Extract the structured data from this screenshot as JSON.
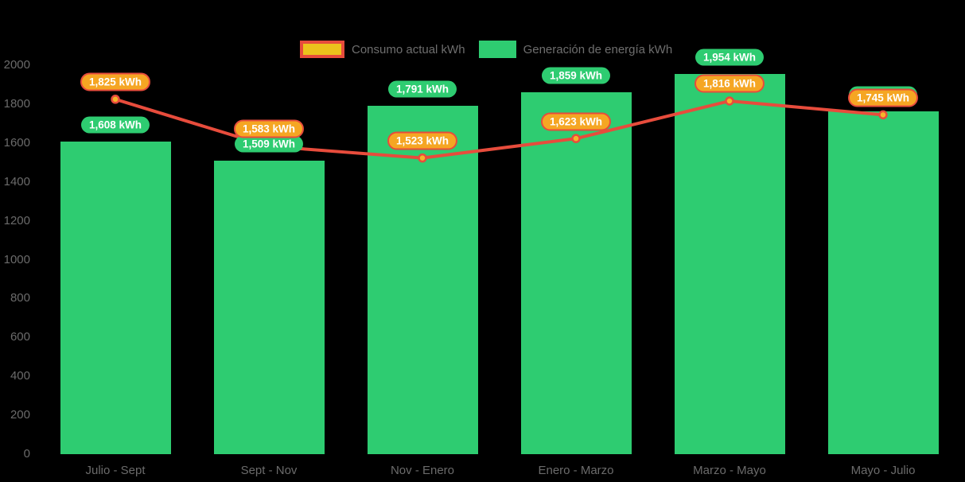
{
  "chart_data": {
    "type": "bar+line",
    "title": "",
    "xlabel": "",
    "ylabel": "",
    "categories": [
      "Julio - Sept",
      "Sept - Nov",
      "Nov - Enero",
      "Enero - Marzo",
      "Marzo - Mayo",
      "Mayo - Julio"
    ],
    "series": [
      {
        "name": "Consumo actual kWh",
        "type": "line",
        "values": [
          1825,
          1583,
          1523,
          1623,
          1816,
          1745
        ],
        "point_labels": [
          "1,825 kWh",
          "1,583 kWh",
          "1,523 kWh",
          "1,623 kWh",
          "1,816 kWh",
          "1,745 kWh"
        ]
      },
      {
        "name": "Generación de energía kWh",
        "type": "bar",
        "values": [
          1608,
          1509,
          1791,
          1859,
          1954,
          1761
        ],
        "point_labels": [
          "1,608 kWh",
          "1,509 kWh",
          "1,791 kWh",
          "1,859 kWh",
          "1,954 kWh",
          "1,761 kWh"
        ]
      }
    ],
    "ylim": [
      0,
      2000
    ],
    "yticks": [
      0,
      200,
      400,
      600,
      800,
      1000,
      1200,
      1400,
      1600,
      1800,
      2000
    ],
    "grid": false,
    "legend_position": "top-center",
    "colors": {
      "background": "#000000",
      "bar": "#2ecc71",
      "line": "#e74c3c",
      "marker-fill": "#f5b52a",
      "marker-stroke": "#e74c3c",
      "badge-generation-bg": "#2ecc71",
      "badge-consumption-bg": "#f5a623",
      "badge-consumption-border": "#e74c3c",
      "legend-consumption-fill": "#ecc21c",
      "legend-text": "#6e6e6e",
      "axis-text": "#6b6b6b"
    }
  }
}
